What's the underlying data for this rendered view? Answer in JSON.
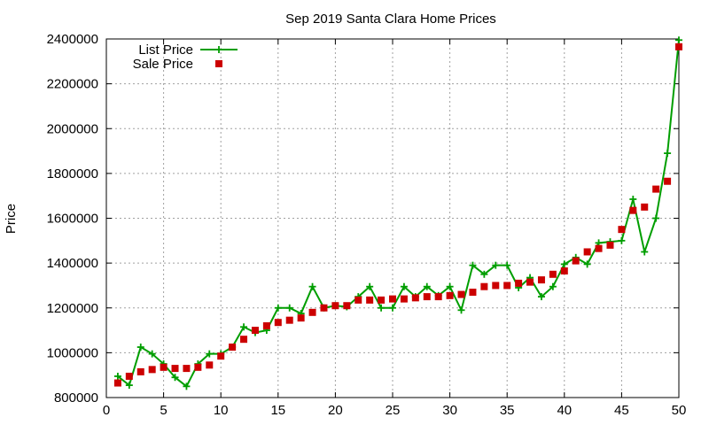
{
  "chart_data": {
    "type": "line",
    "title": "Sep 2019 Santa Clara Home Prices",
    "xlabel": "",
    "ylabel": "Price",
    "xlim": [
      0,
      50
    ],
    "ylim": [
      800000,
      2400000
    ],
    "xticks": [
      0,
      5,
      10,
      15,
      20,
      25,
      30,
      35,
      40,
      45,
      50
    ],
    "yticks": [
      800000,
      1000000,
      1200000,
      1400000,
      1600000,
      1800000,
      2000000,
      2200000,
      2400000
    ],
    "grid": true,
    "legend_position": "top-left",
    "x": [
      1,
      2,
      3,
      4,
      5,
      6,
      7,
      8,
      9,
      10,
      11,
      12,
      13,
      14,
      15,
      16,
      17,
      18,
      19,
      20,
      21,
      22,
      23,
      24,
      25,
      26,
      27,
      28,
      29,
      30,
      31,
      32,
      33,
      34,
      35,
      36,
      37,
      38,
      39,
      40,
      41,
      42,
      43,
      44,
      45,
      46,
      47,
      48,
      49,
      50
    ],
    "series": [
      {
        "name": "List Price",
        "style": "line-plus",
        "color": "#009e00",
        "values": [
          895000,
          855000,
          1025000,
          995000,
          950000,
          890000,
          850000,
          950000,
          995000,
          995000,
          1025000,
          1115000,
          1090000,
          1100000,
          1200000,
          1200000,
          1175000,
          1295000,
          1200000,
          1210000,
          1205000,
          1250000,
          1295000,
          1200000,
          1200000,
          1295000,
          1250000,
          1295000,
          1255000,
          1295000,
          1190000,
          1390000,
          1350000,
          1390000,
          1390000,
          1290000,
          1335000,
          1250000,
          1295000,
          1395000,
          1425000,
          1395000,
          1490000,
          1495000,
          1500000,
          1685000,
          1450000,
          1600000,
          1890000,
          2395000
        ]
      },
      {
        "name": "Sale Price",
        "style": "square",
        "color": "#cc0000",
        "values": [
          865000,
          895000,
          915000,
          925000,
          935000,
          930000,
          930000,
          935000,
          945000,
          985000,
          1025000,
          1060000,
          1100000,
          1120000,
          1135000,
          1145000,
          1155000,
          1180000,
          1200000,
          1210000,
          1210000,
          1235000,
          1235000,
          1235000,
          1240000,
          1240000,
          1245000,
          1250000,
          1250000,
          1255000,
          1260000,
          1270000,
          1295000,
          1300000,
          1300000,
          1310000,
          1315000,
          1325000,
          1350000,
          1365000,
          1410000,
          1450000,
          1465000,
          1480000,
          1550000,
          1635000,
          1650000,
          1730000,
          1765000,
          2365000
        ]
      }
    ]
  }
}
